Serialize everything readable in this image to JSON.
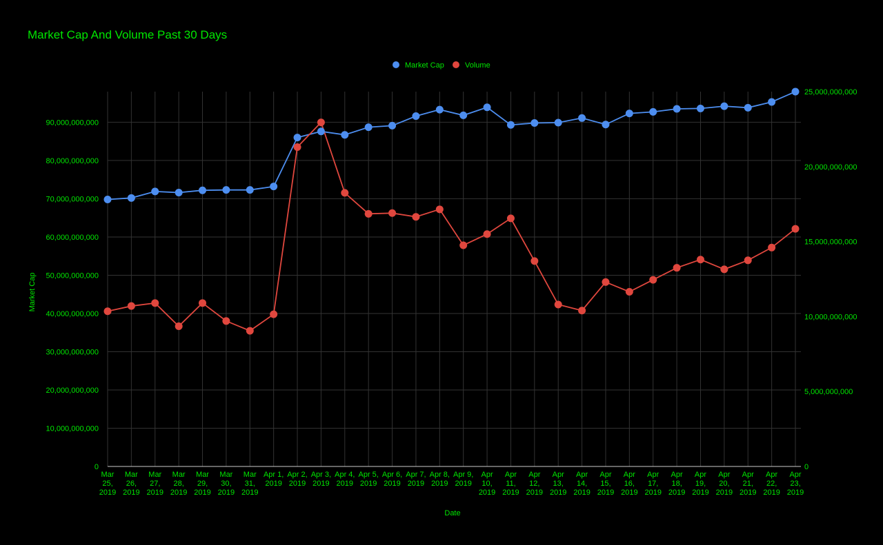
{
  "chart_data": {
    "type": "line",
    "title": "Market Cap And Volume Past 30 Days",
    "xlabel": "Date",
    "ylabel": "Market Cap",
    "ylabel_right": "",
    "x": [
      [
        "Mar",
        "25,",
        "2019"
      ],
      [
        "Mar",
        "26,",
        "2019"
      ],
      [
        "Mar",
        "27,",
        "2019"
      ],
      [
        "Mar",
        "28,",
        "2019"
      ],
      [
        "Mar",
        "29,",
        "2019"
      ],
      [
        "Mar",
        "30,",
        "2019"
      ],
      [
        "Mar",
        "31,",
        "2019"
      ],
      [
        "Apr 1,",
        "2019"
      ],
      [
        "Apr 2,",
        "2019"
      ],
      [
        "Apr 3,",
        "2019"
      ],
      [
        "Apr 4,",
        "2019"
      ],
      [
        "Apr 5,",
        "2019"
      ],
      [
        "Apr 6,",
        "2019"
      ],
      [
        "Apr 7,",
        "2019"
      ],
      [
        "Apr 8,",
        "2019"
      ],
      [
        "Apr 9,",
        "2019"
      ],
      [
        "Apr",
        "10,",
        "2019"
      ],
      [
        "Apr",
        "11,",
        "2019"
      ],
      [
        "Apr",
        "12,",
        "2019"
      ],
      [
        "Apr",
        "13,",
        "2019"
      ],
      [
        "Apr",
        "14,",
        "2019"
      ],
      [
        "Apr",
        "15,",
        "2019"
      ],
      [
        "Apr",
        "16,",
        "2019"
      ],
      [
        "Apr",
        "17,",
        "2019"
      ],
      [
        "Apr",
        "18,",
        "2019"
      ],
      [
        "Apr",
        "19,",
        "2019"
      ],
      [
        "Apr",
        "20,",
        "2019"
      ],
      [
        "Apr",
        "21,",
        "2019"
      ],
      [
        "Apr",
        "22,",
        "2019"
      ],
      [
        "Apr",
        "23,",
        "2019"
      ]
    ],
    "ylim": [
      0,
      98000000000
    ],
    "yticks": [
      "0",
      "10,000,000,000",
      "20,000,000,000",
      "30,000,000,000",
      "40,000,000,000",
      "50,000,000,000",
      "60,000,000,000",
      "70,000,000,000",
      "80,000,000,000",
      "90,000,000,000"
    ],
    "ytick_values": [
      0,
      10000000000,
      20000000000,
      30000000000,
      40000000000,
      50000000000,
      60000000000,
      70000000000,
      80000000000,
      90000000000
    ],
    "y2lim": [
      0,
      25000000000
    ],
    "y2ticks": [
      "0",
      "5,000,000,000",
      "10,000,000,000",
      "15,000,000,000",
      "20,000,000,000",
      "25,000,000,000"
    ],
    "y2tick_values": [
      0,
      5000000000,
      10000000000,
      15000000000,
      20000000000,
      25000000000
    ],
    "grid": true,
    "legend": "top",
    "series": [
      {
        "name": "Market Cap",
        "color": "#4d8ef0",
        "axis": "left",
        "values": [
          69800000000,
          70200000000,
          71900000000,
          71600000000,
          72200000000,
          72300000000,
          72300000000,
          73200000000,
          86000000000,
          87600000000,
          86700000000,
          88700000000,
          89100000000,
          91600000000,
          93300000000,
          91800000000,
          93900000000,
          89300000000,
          89800000000,
          89900000000,
          91100000000,
          89400000000,
          92300000000,
          92700000000,
          93500000000,
          93600000000,
          94200000000,
          93800000000,
          95300000000,
          98000000000
        ]
      },
      {
        "name": "Volume",
        "color": "#e0473e",
        "axis": "right",
        "values": [
          10350000000,
          10700000000,
          10900000000,
          9350000000,
          10900000000,
          9700000000,
          9050000000,
          10150000000,
          21300000000,
          22950000000,
          18250000000,
          16850000000,
          16900000000,
          16650000000,
          17150000000,
          14750000000,
          15500000000,
          16550000000,
          13700000000,
          10800000000,
          10400000000,
          12300000000,
          11650000000,
          12450000000,
          13250000000,
          13800000000,
          13150000000,
          13750000000,
          14600000000,
          15850000000
        ]
      }
    ],
    "colors": {
      "background": "#000000",
      "text": "#00e600",
      "grid": "#333333",
      "axis": "#cccccc"
    }
  }
}
